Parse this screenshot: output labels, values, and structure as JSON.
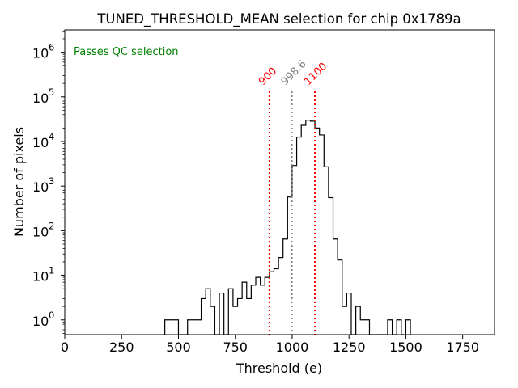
{
  "chart_data": {
    "type": "histogram",
    "title": "TUNED_THRESHOLD_MEAN selection for chip 0x1789a",
    "xlabel": "Threshold (e)",
    "ylabel": "Number of pixels",
    "annotation": "Passes QC selection",
    "xlim": [
      0,
      1890
    ],
    "ylim_log10": [
      -0.33,
      6.5
    ],
    "xticks": [
      0,
      250,
      500,
      750,
      1000,
      1250,
      1500,
      1750
    ],
    "xtick_labels": [
      "0",
      "250",
      "500",
      "750",
      "1000",
      "1250",
      "1500",
      "1750"
    ],
    "yticks_exp": [
      0,
      1,
      2,
      3,
      4,
      5,
      6
    ],
    "ytick_labels": [
      {
        "base": "10",
        "exp": "0"
      },
      {
        "base": "10",
        "exp": "1"
      },
      {
        "base": "10",
        "exp": "2"
      },
      {
        "base": "10",
        "exp": "3"
      },
      {
        "base": "10",
        "exp": "4"
      },
      {
        "base": "10",
        "exp": "5"
      },
      {
        "base": "10",
        "exp": "6"
      }
    ],
    "bin_width": 20,
    "bins_start": 440,
    "bin_counts": [
      1,
      1,
      1,
      0,
      0,
      1,
      1,
      1,
      3,
      5,
      2,
      0,
      4,
      0,
      5,
      2,
      3,
      7,
      3,
      6,
      9,
      6,
      9,
      12,
      14,
      25,
      65,
      570,
      2900,
      12500,
      23000,
      30000,
      28500,
      20000,
      14000,
      2700,
      550,
      65,
      22,
      2,
      4,
      0,
      2,
      1,
      1,
      0,
      0,
      0,
      0,
      1,
      0,
      1,
      0,
      1
    ],
    "threshold_lines": [
      {
        "value": 900,
        "label": "900",
        "color": "#ff0000"
      },
      {
        "value": 998.6,
        "label": "998.6",
        "color": "#808080"
      },
      {
        "value": 1100,
        "label": "1100",
        "color": "#ff0000"
      }
    ],
    "colors": {
      "histogram": "#000000",
      "annotation": "#008000"
    }
  }
}
